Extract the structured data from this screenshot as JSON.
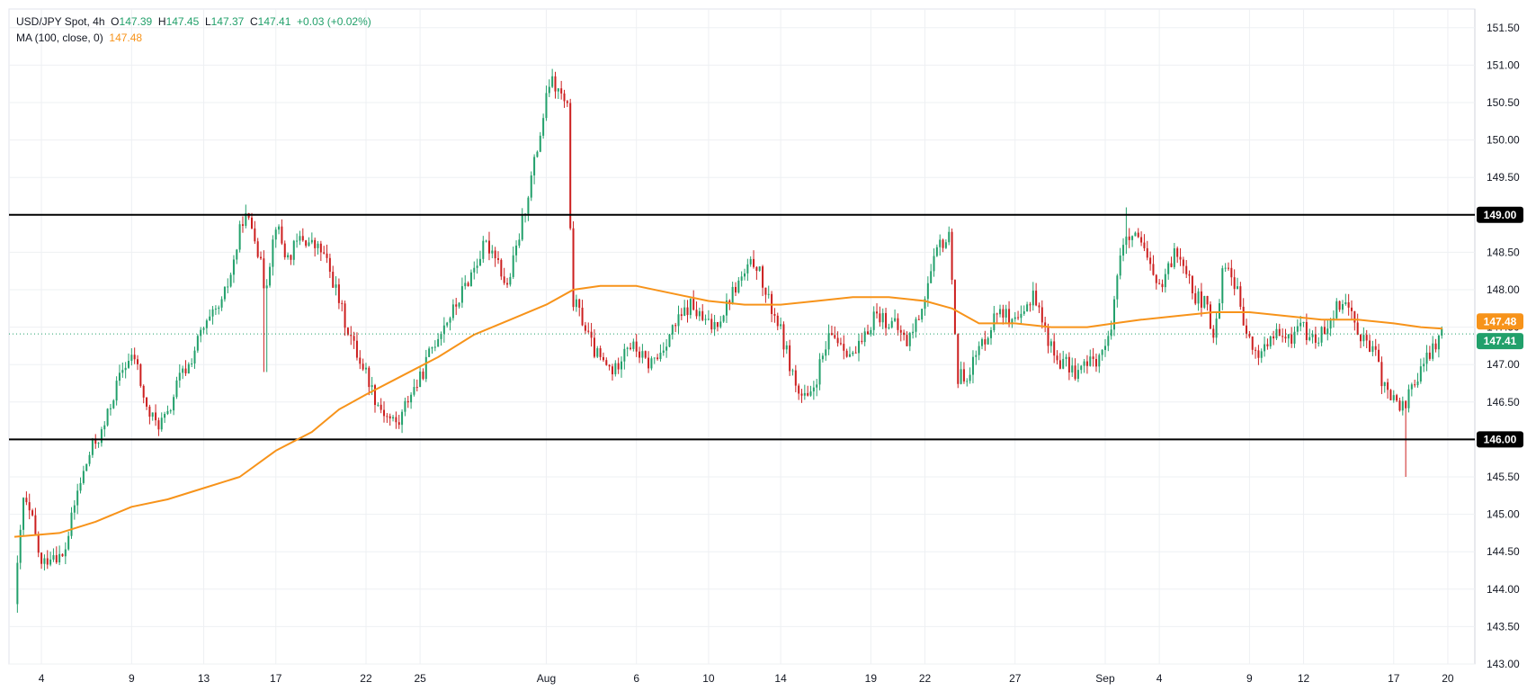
{
  "legend": {
    "symbol": "USD/JPY Spot, 4h",
    "o_label": "O",
    "o_value": "147.39",
    "h_label": "H",
    "h_value": "147.45",
    "l_label": "L",
    "l_value": "147.37",
    "c_label": "C",
    "c_value": "147.41",
    "change": "+0.03 (+0.02%)",
    "ma_label": "MA (100, close, 0)",
    "ma_value": "147.48"
  },
  "colors": {
    "up": "#22a06b",
    "down": "#cc1f1f",
    "ma": "#f7931a",
    "level": "#000000",
    "grid": "#eef0f3"
  },
  "chart_data": {
    "type": "candlestick",
    "title": "",
    "ylim": [
      143.0,
      151.75
    ],
    "yticks": [
      "143.00",
      "143.50",
      "144.00",
      "144.50",
      "145.00",
      "145.50",
      "146.00",
      "146.50",
      "147.00",
      "147.50",
      "148.00",
      "148.50",
      "149.00",
      "149.50",
      "150.00",
      "150.50",
      "151.00",
      "151.50"
    ],
    "xticks": [
      {
        "label": "4",
        "day": 4
      },
      {
        "label": "9",
        "day": 9
      },
      {
        "label": "13",
        "day": 13
      },
      {
        "label": "17",
        "day": 17
      },
      {
        "label": "22",
        "day": 22
      },
      {
        "label": "25",
        "day": 25
      },
      {
        "label": "Aug",
        "day": 32
      },
      {
        "label": "6",
        "day": 37
      },
      {
        "label": "10",
        "day": 41
      },
      {
        "label": "14",
        "day": 45
      },
      {
        "label": "19",
        "day": 50
      },
      {
        "label": "22",
        "day": 53
      },
      {
        "label": "27",
        "day": 58
      },
      {
        "label": "Sep",
        "day": 63
      },
      {
        "label": "4",
        "day": 66
      },
      {
        "label": "9",
        "day": 71
      },
      {
        "label": "12",
        "day": 74
      },
      {
        "label": "17",
        "day": 79
      },
      {
        "label": "20",
        "day": 82
      }
    ],
    "levels": [
      {
        "value": 149.0,
        "label": "149.00"
      },
      {
        "value": 146.0,
        "label": "146.00"
      }
    ],
    "price_tags": [
      {
        "value": 147.48,
        "label": "147.48",
        "kind": "ma"
      },
      {
        "value": 147.41,
        "label": "147.41",
        "kind": "last"
      }
    ],
    "last_price": 147.41,
    "price_path": [
      [
        2.5,
        143.8
      ],
      [
        3.0,
        145.2
      ],
      [
        3.5,
        144.9
      ],
      [
        4.0,
        144.3
      ],
      [
        4.6,
        144.5
      ],
      [
        5.2,
        144.4
      ],
      [
        6.0,
        145.3
      ],
      [
        6.8,
        145.9
      ],
      [
        7.4,
        146.1
      ],
      [
        8.0,
        146.6
      ],
      [
        8.6,
        147.0
      ],
      [
        9.2,
        147.1
      ],
      [
        9.8,
        146.4
      ],
      [
        10.4,
        146.2
      ],
      [
        11.0,
        146.3
      ],
      [
        11.6,
        146.8
      ],
      [
        12.2,
        147.0
      ],
      [
        12.8,
        147.4
      ],
      [
        13.4,
        147.6
      ],
      [
        14.0,
        147.8
      ],
      [
        14.6,
        148.3
      ],
      [
        15.2,
        149.0
      ],
      [
        15.8,
        148.8
      ],
      [
        16.4,
        148.0
      ],
      [
        17.0,
        148.9
      ],
      [
        17.6,
        148.4
      ],
      [
        18.4,
        148.7
      ],
      [
        19.0,
        148.6
      ],
      [
        19.6,
        148.5
      ],
      [
        20.2,
        148.1
      ],
      [
        20.8,
        147.6
      ],
      [
        21.4,
        147.2
      ],
      [
        22.0,
        146.9
      ],
      [
        22.6,
        146.5
      ],
      [
        23.2,
        146.3
      ],
      [
        23.8,
        146.2
      ],
      [
        24.4,
        146.6
      ],
      [
        25.0,
        146.8
      ],
      [
        25.6,
        147.2
      ],
      [
        26.2,
        147.5
      ],
      [
        26.8,
        147.7
      ],
      [
        27.4,
        148.0
      ],
      [
        28.0,
        148.3
      ],
      [
        28.6,
        148.6
      ],
      [
        29.2,
        148.5
      ],
      [
        29.8,
        148.0
      ],
      [
        30.4,
        148.6
      ],
      [
        31.0,
        149.3
      ],
      [
        31.6,
        150.0
      ],
      [
        32.2,
        150.8
      ],
      [
        32.8,
        150.6
      ],
      [
        33.2,
        150.4
      ],
      [
        33.4,
        147.9
      ],
      [
        34.0,
        147.6
      ],
      [
        34.6,
        147.2
      ],
      [
        35.2,
        147.0
      ],
      [
        35.8,
        146.9
      ],
      [
        36.4,
        147.3
      ],
      [
        37.0,
        147.2
      ],
      [
        37.6,
        147.0
      ],
      [
        38.2,
        147.1
      ],
      [
        38.8,
        147.4
      ],
      [
        39.4,
        147.6
      ],
      [
        40.0,
        147.8
      ],
      [
        40.6,
        147.6
      ],
      [
        41.2,
        147.5
      ],
      [
        41.8,
        147.7
      ],
      [
        42.4,
        148.0
      ],
      [
        43.0,
        148.2
      ],
      [
        43.6,
        148.4
      ],
      [
        44.2,
        147.9
      ],
      [
        44.8,
        147.6
      ],
      [
        45.4,
        147.1
      ],
      [
        46.0,
        146.6
      ],
      [
        46.6,
        146.5
      ],
      [
        47.2,
        147.0
      ],
      [
        47.8,
        147.4
      ],
      [
        48.4,
        147.3
      ],
      [
        49.0,
        147.1
      ],
      [
        49.6,
        147.3
      ],
      [
        50.2,
        147.7
      ],
      [
        50.8,
        147.6
      ],
      [
        51.4,
        147.5
      ],
      [
        52.0,
        147.3
      ],
      [
        52.6,
        147.6
      ],
      [
        53.2,
        148.1
      ],
      [
        53.8,
        148.6
      ],
      [
        54.4,
        148.7
      ],
      [
        54.8,
        146.8
      ],
      [
        55.4,
        146.9
      ],
      [
        56.0,
        147.2
      ],
      [
        56.6,
        147.5
      ],
      [
        57.2,
        147.8
      ],
      [
        57.8,
        147.5
      ],
      [
        58.4,
        147.6
      ],
      [
        59.0,
        148.0
      ],
      [
        59.6,
        147.5
      ],
      [
        60.2,
        147.1
      ],
      [
        60.8,
        147.0
      ],
      [
        61.4,
        146.9
      ],
      [
        62.0,
        147.0
      ],
      [
        62.6,
        147.1
      ],
      [
        63.2,
        147.3
      ],
      [
        63.8,
        148.5
      ],
      [
        64.4,
        148.7
      ],
      [
        65.0,
        148.6
      ],
      [
        65.6,
        148.2
      ],
      [
        66.2,
        148.0
      ],
      [
        66.8,
        148.5
      ],
      [
        67.4,
        148.4
      ],
      [
        68.0,
        147.9
      ],
      [
        68.6,
        147.8
      ],
      [
        69.0,
        147.3
      ],
      [
        69.6,
        148.4
      ],
      [
        70.2,
        148.1
      ],
      [
        70.8,
        147.4
      ],
      [
        71.4,
        147.1
      ],
      [
        72.0,
        147.3
      ],
      [
        72.6,
        147.4
      ],
      [
        73.2,
        147.3
      ],
      [
        73.8,
        147.6
      ],
      [
        74.4,
        147.3
      ],
      [
        75.0,
        147.4
      ],
      [
        75.6,
        147.7
      ],
      [
        76.2,
        147.9
      ],
      [
        76.8,
        147.6
      ],
      [
        77.4,
        147.3
      ],
      [
        78.0,
        147.1
      ],
      [
        78.6,
        146.6
      ],
      [
        79.2,
        146.5
      ],
      [
        79.6,
        146.4
      ],
      [
        79.9,
        146.7
      ],
      [
        80.5,
        146.9
      ],
      [
        81.1,
        147.2
      ],
      [
        81.7,
        147.41
      ]
    ],
    "ma_path": [
      [
        2.5,
        144.7
      ],
      [
        5.0,
        144.75
      ],
      [
        7.0,
        144.9
      ],
      [
        9.0,
        145.1
      ],
      [
        11.0,
        145.2
      ],
      [
        13.0,
        145.35
      ],
      [
        15.0,
        145.5
      ],
      [
        17.0,
        145.85
      ],
      [
        19.0,
        146.1
      ],
      [
        20.5,
        146.4
      ],
      [
        22.0,
        146.6
      ],
      [
        24.0,
        146.85
      ],
      [
        26.0,
        147.1
      ],
      [
        28.0,
        147.4
      ],
      [
        30.0,
        147.6
      ],
      [
        32.0,
        147.8
      ],
      [
        33.5,
        148.0
      ],
      [
        35.0,
        148.05
      ],
      [
        37.0,
        148.05
      ],
      [
        39.0,
        147.95
      ],
      [
        41.0,
        147.85
      ],
      [
        43.0,
        147.8
      ],
      [
        45.0,
        147.8
      ],
      [
        47.0,
        147.85
      ],
      [
        49.0,
        147.9
      ],
      [
        51.0,
        147.9
      ],
      [
        53.0,
        147.85
      ],
      [
        54.5,
        147.75
      ],
      [
        56.0,
        147.55
      ],
      [
        58.0,
        147.55
      ],
      [
        60.0,
        147.5
      ],
      [
        62.0,
        147.5
      ],
      [
        63.5,
        147.55
      ],
      [
        65.0,
        147.6
      ],
      [
        67.0,
        147.65
      ],
      [
        69.0,
        147.7
      ],
      [
        71.0,
        147.7
      ],
      [
        73.0,
        147.65
      ],
      [
        75.0,
        147.6
      ],
      [
        77.0,
        147.6
      ],
      [
        79.0,
        147.55
      ],
      [
        80.5,
        147.5
      ],
      [
        81.7,
        147.48
      ]
    ]
  }
}
